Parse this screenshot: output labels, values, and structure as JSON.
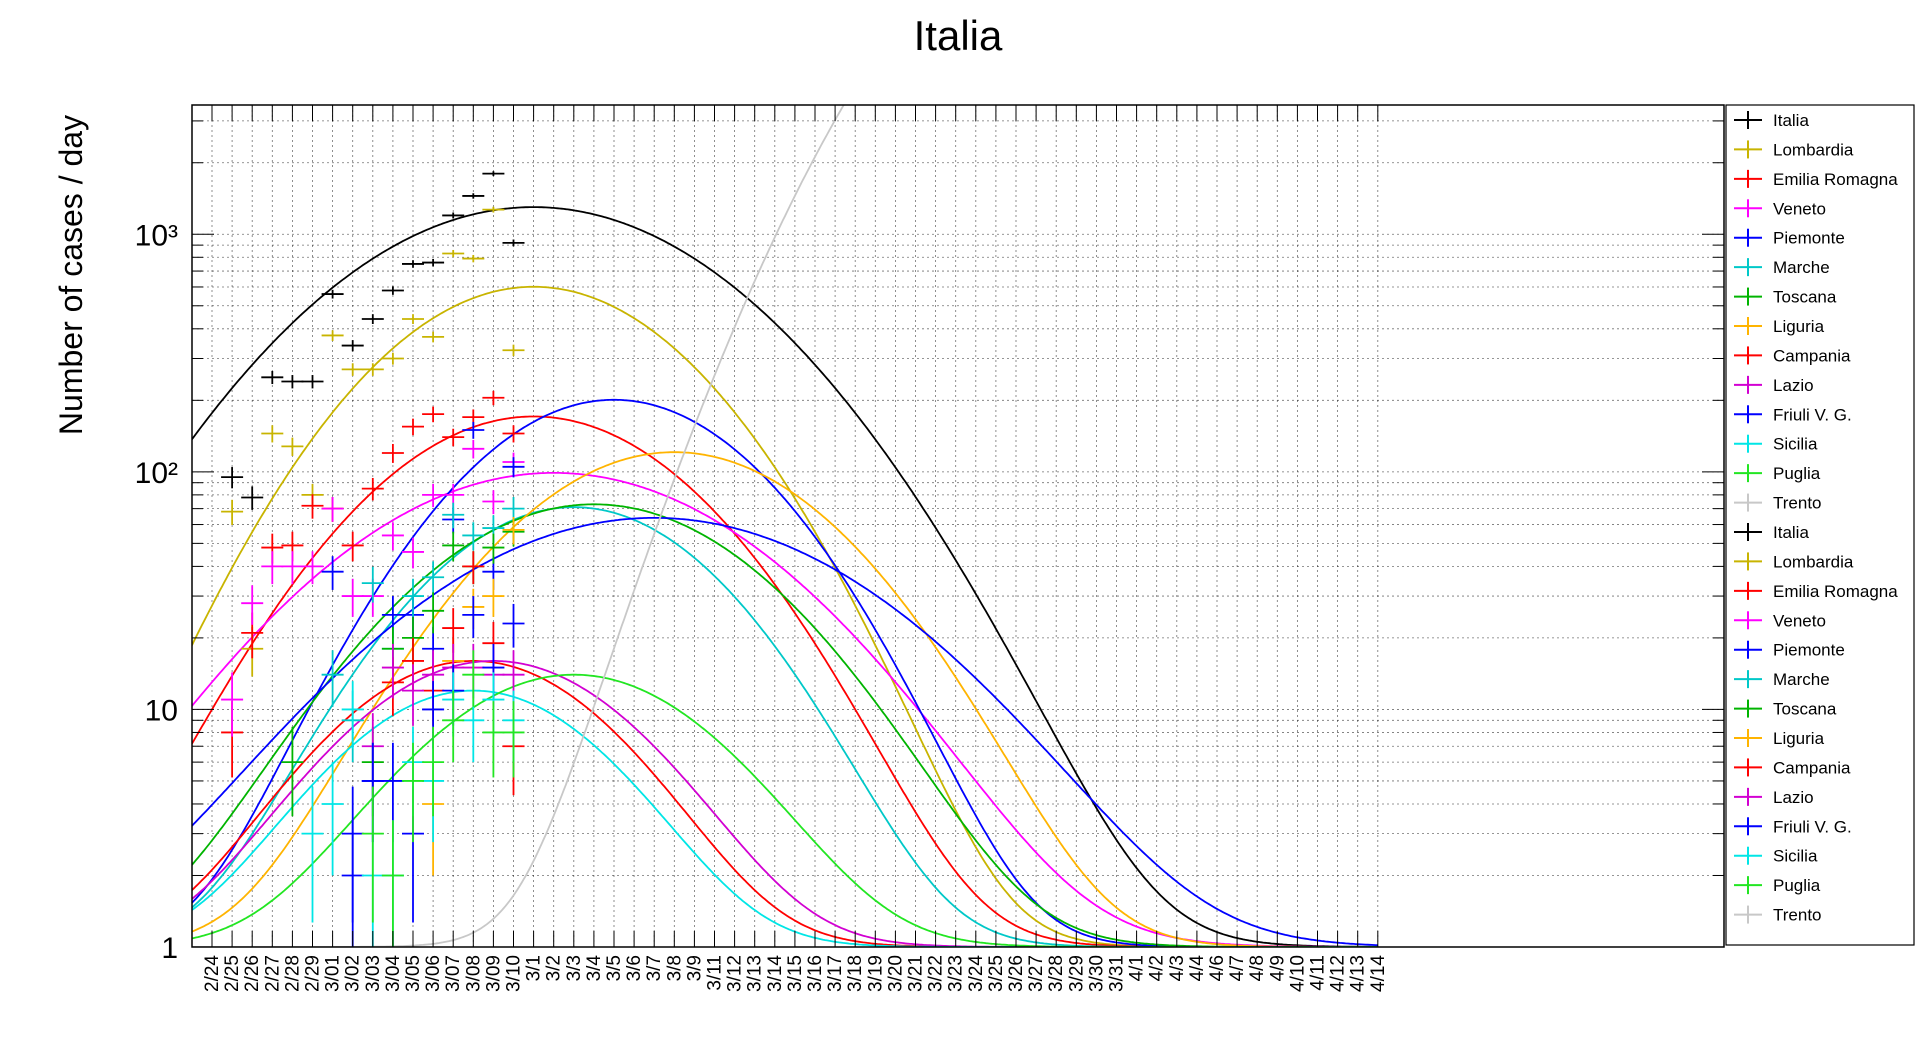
{
  "chart_data": {
    "type": "line",
    "title": "Italia",
    "xlabel": "",
    "ylabel": "Number of cases / day",
    "y_scale": "log",
    "ylim": [
      1,
      3500
    ],
    "grid": true,
    "legend_position": "right",
    "y_ticks": [
      {
        "value": 1,
        "label": "1"
      },
      {
        "value": 10,
        "label": "10"
      },
      {
        "value": 100,
        "label": "10²"
      },
      {
        "value": 1000,
        "label": "10³"
      }
    ],
    "x_tick_labels": [
      "2/24",
      "2/25",
      "2/26",
      "2/27",
      "2/28",
      "2/29",
      "3/01",
      "3/02",
      "3/03",
      "3/04",
      "3/05",
      "3/06",
      "3/07",
      "3/08",
      "3/09",
      "3/10",
      "3/1",
      "3/2",
      "3/3",
      "3/4",
      "3/5",
      "3/6",
      "3/7",
      "3/8",
      "3/9",
      "3/11",
      "3/12",
      "3/13",
      "3/14",
      "3/15",
      "3/16",
      "3/17",
      "3/18",
      "3/19",
      "3/20",
      "3/21",
      "3/22",
      "3/23",
      "3/24",
      "3/25",
      "3/26",
      "3/27",
      "3/28",
      "3/29",
      "3/30",
      "3/31",
      "4/1",
      "4/2",
      "4/3",
      "4/4",
      "4/6",
      "4/7",
      "4/8",
      "4/9",
      "4/10",
      "4/11",
      "4/12",
      "4/13",
      "4/14"
    ],
    "legend": [
      {
        "name": "Italia",
        "color": "#000000"
      },
      {
        "name": "Lombardia",
        "color": "#c8b400"
      },
      {
        "name": "Emilia Romagna",
        "color": "#ff0000"
      },
      {
        "name": "Veneto",
        "color": "#ff00ff"
      },
      {
        "name": "Piemonte",
        "color": "#0000ff"
      },
      {
        "name": "Marche",
        "color": "#00c8c8"
      },
      {
        "name": "Toscana",
        "color": "#00b400"
      },
      {
        "name": "Liguria",
        "color": "#ffb400"
      },
      {
        "name": "Campania",
        "color": "#ff0000"
      },
      {
        "name": "Lazio",
        "color": "#d200d2"
      },
      {
        "name": "Friuli V. G.",
        "color": "#0000ff"
      },
      {
        "name": "Sicilia",
        "color": "#00e6e6"
      },
      {
        "name": "Puglia",
        "color": "#22e622"
      },
      {
        "name": "Trento",
        "color": "#c8c8c8"
      },
      {
        "name": "Italia",
        "color": "#000000"
      },
      {
        "name": "Lombardia",
        "color": "#c8b400"
      },
      {
        "name": "Emilia Romagna",
        "color": "#ff0000"
      },
      {
        "name": "Veneto",
        "color": "#ff00ff"
      },
      {
        "name": "Piemonte",
        "color": "#0000ff"
      },
      {
        "name": "Marche",
        "color": "#00c8c8"
      },
      {
        "name": "Toscana",
        "color": "#00b400"
      },
      {
        "name": "Liguria",
        "color": "#ffb400"
      },
      {
        "name": "Campania",
        "color": "#ff0000"
      },
      {
        "name": "Lazio",
        "color": "#d200d2"
      },
      {
        "name": "Friuli V. G.",
        "color": "#0000ff"
      },
      {
        "name": "Sicilia",
        "color": "#00e6e6"
      },
      {
        "name": "Puglia",
        "color": "#22e622"
      },
      {
        "name": "Trento",
        "color": "#c8c8c8"
      }
    ],
    "fit_curves": [
      {
        "color": "#000000",
        "peak_date": "3/1",
        "peak": 1300,
        "sigma_days": 8.0
      },
      {
        "color": "#c8b400",
        "peak_date": "3/1",
        "peak": 600,
        "sigma_days": 6.4
      },
      {
        "color": "#ff0000",
        "peak_date": "3/1",
        "peak": 170,
        "sigma_days": 6.6
      },
      {
        "color": "#ff00ff",
        "peak_date": "3/2",
        "peak": 98,
        "sigma_days": 8.3
      },
      {
        "color": "#0000ff",
        "peak_date": "3/5",
        "peak": 200,
        "sigma_days": 6.1
      },
      {
        "color": "#00c8c8",
        "peak_date": "3/3",
        "peak": 70,
        "sigma_days": 6.0
      },
      {
        "color": "#00b400",
        "peak_date": "3/4",
        "peak": 72,
        "sigma_days": 7.0
      },
      {
        "color": "#ffb400",
        "peak_date": "3/8",
        "peak": 120,
        "sigma_days": 6.6
      },
      {
        "color": "#ff0000",
        "peak_date": "3/08",
        "peak": 15,
        "sigma_days": 5.7
      },
      {
        "color": "#d200d2",
        "peak_date": "3/09",
        "peak": 15,
        "sigma_days": 5.9
      },
      {
        "color": "#0000ff",
        "peak_date": "3/7",
        "peak": 63,
        "sigma_days": 8.9
      },
      {
        "color": "#00e6e6",
        "peak_date": "3/08",
        "peak": 11,
        "sigma_days": 5.5
      },
      {
        "color": "#22e622",
        "peak_date": "3/3",
        "peak": 13,
        "sigma_days": 6.0
      },
      {
        "color": "#c8c8c8",
        "peak_date": "4/1",
        "peak": 40000,
        "sigma_days": 6.6
      }
    ],
    "data_points": [
      {
        "color": "#000000",
        "points": [
          [
            "2/25",
            95
          ],
          [
            "2/26",
            78
          ],
          [
            "2/27",
            250
          ],
          [
            "2/28",
            240
          ],
          [
            "2/29",
            240
          ],
          [
            "3/01",
            560
          ],
          [
            "3/02",
            340
          ],
          [
            "3/03",
            440
          ],
          [
            "3/04",
            580
          ],
          [
            "3/05",
            750
          ],
          [
            "3/06",
            760
          ],
          [
            "3/07",
            1200
          ],
          [
            "3/08",
            1450
          ],
          [
            "3/09",
            1800
          ],
          [
            "3/10",
            920
          ]
        ]
      },
      {
        "color": "#c8b400",
        "points": [
          [
            "2/25",
            68
          ],
          [
            "2/26",
            18
          ],
          [
            "2/27",
            145
          ],
          [
            "2/28",
            128
          ],
          [
            "2/29",
            80
          ],
          [
            "3/01",
            375
          ],
          [
            "3/02",
            270
          ],
          [
            "3/03",
            270
          ],
          [
            "3/04",
            300
          ],
          [
            "3/05",
            440
          ],
          [
            "3/06",
            370
          ],
          [
            "3/07",
            830
          ],
          [
            "3/08",
            790
          ],
          [
            "3/09",
            1270
          ],
          [
            "3/10",
            325
          ]
        ]
      },
      {
        "color": "#ff0000",
        "points": [
          [
            "2/25",
            8
          ],
          [
            "2/26",
            21
          ],
          [
            "2/27",
            48
          ],
          [
            "2/28",
            49
          ],
          [
            "2/29",
            72
          ],
          [
            "3/01",
            70
          ],
          [
            "3/02",
            49
          ],
          [
            "3/03",
            85
          ],
          [
            "3/04",
            120
          ],
          [
            "3/05",
            155
          ],
          [
            "3/06",
            175
          ],
          [
            "3/07",
            140
          ],
          [
            "3/08",
            170
          ],
          [
            "3/09",
            205
          ],
          [
            "3/10",
            145
          ]
        ]
      },
      {
        "color": "#ff00ff",
        "points": [
          [
            "2/25",
            11
          ],
          [
            "2/26",
            28
          ],
          [
            "2/27",
            40
          ],
          [
            "2/28",
            40
          ],
          [
            "2/29",
            40
          ],
          [
            "3/01",
            70
          ],
          [
            "3/02",
            30
          ],
          [
            "3/03",
            30
          ],
          [
            "3/04",
            54
          ],
          [
            "3/05",
            46
          ],
          [
            "3/06",
            80
          ],
          [
            "3/07",
            80
          ],
          [
            "3/08",
            125
          ],
          [
            "3/09",
            75
          ],
          [
            "3/10",
            110
          ]
        ]
      },
      {
        "color": "#0000ff",
        "points": [
          [
            "3/01",
            38
          ],
          [
            "3/02",
            3
          ],
          [
            "3/03",
            5
          ],
          [
            "3/04",
            25
          ],
          [
            "3/05",
            25
          ],
          [
            "3/06",
            18
          ],
          [
            "3/07",
            63
          ],
          [
            "3/08",
            150
          ],
          [
            "3/09",
            38
          ],
          [
            "3/10",
            105
          ]
        ]
      },
      {
        "color": "#00c8c8",
        "points": [
          [
            "3/01",
            14
          ],
          [
            "3/02",
            9
          ],
          [
            "3/03",
            34
          ],
          [
            "3/04",
            18
          ],
          [
            "3/05",
            30
          ],
          [
            "3/06",
            36
          ],
          [
            "3/07",
            66
          ],
          [
            "3/08",
            54
          ],
          [
            "3/09",
            58
          ],
          [
            "3/10",
            70
          ]
        ]
      },
      {
        "color": "#00b400",
        "points": [
          [
            "2/28",
            6
          ],
          [
            "3/03",
            6
          ],
          [
            "3/04",
            18
          ],
          [
            "3/05",
            20
          ],
          [
            "3/06",
            26
          ],
          [
            "3/07",
            49
          ],
          [
            "3/08",
            40
          ],
          [
            "3/09",
            48
          ],
          [
            "3/10",
            56
          ]
        ]
      },
      {
        "color": "#ffb400",
        "points": [
          [
            "3/06",
            4
          ],
          [
            "3/07",
            16
          ],
          [
            "3/08",
            27
          ],
          [
            "3/09",
            30
          ],
          [
            "3/10",
            57
          ]
        ]
      },
      {
        "color": "#ff0000",
        "points": [
          [
            "3/04",
            13
          ],
          [
            "3/05",
            16
          ],
          [
            "3/06",
            12
          ],
          [
            "3/07",
            22
          ],
          [
            "3/08",
            40
          ],
          [
            "3/09",
            19
          ],
          [
            "3/10",
            7
          ]
        ]
      },
      {
        "color": "#d200d2",
        "points": [
          [
            "3/03",
            7
          ],
          [
            "3/04",
            15
          ],
          [
            "3/05",
            12
          ],
          [
            "3/06",
            14
          ],
          [
            "3/07",
            15
          ],
          [
            "3/08",
            15
          ],
          [
            "3/09",
            14
          ],
          [
            "3/10",
            14
          ]
        ]
      },
      {
        "color": "#0000ff",
        "points": [
          [
            "3/02",
            2
          ],
          [
            "3/03",
            5
          ],
          [
            "3/04",
            5
          ],
          [
            "3/05",
            3
          ],
          [
            "3/06",
            10
          ],
          [
            "3/07",
            12
          ],
          [
            "3/08",
            25
          ],
          [
            "3/09",
            15
          ],
          [
            "3/10",
            23
          ]
        ]
      },
      {
        "color": "#00e6e6",
        "points": [
          [
            "2/29",
            3
          ],
          [
            "3/01",
            4
          ],
          [
            "3/02",
            10
          ],
          [
            "3/03",
            2
          ],
          [
            "3/04",
            2
          ],
          [
            "3/05",
            6
          ],
          [
            "3/06",
            5
          ],
          [
            "3/07",
            11
          ],
          [
            "3/08",
            9
          ],
          [
            "3/09",
            11
          ],
          [
            "3/10",
            9
          ]
        ]
      },
      {
        "color": "#22e622",
        "points": [
          [
            "3/03",
            3
          ],
          [
            "3/04",
            2
          ],
          [
            "3/05",
            5
          ],
          [
            "3/06",
            6
          ],
          [
            "3/07",
            9
          ],
          [
            "3/08",
            14
          ],
          [
            "3/09",
            8
          ],
          [
            "3/10",
            8
          ]
        ]
      }
    ]
  }
}
